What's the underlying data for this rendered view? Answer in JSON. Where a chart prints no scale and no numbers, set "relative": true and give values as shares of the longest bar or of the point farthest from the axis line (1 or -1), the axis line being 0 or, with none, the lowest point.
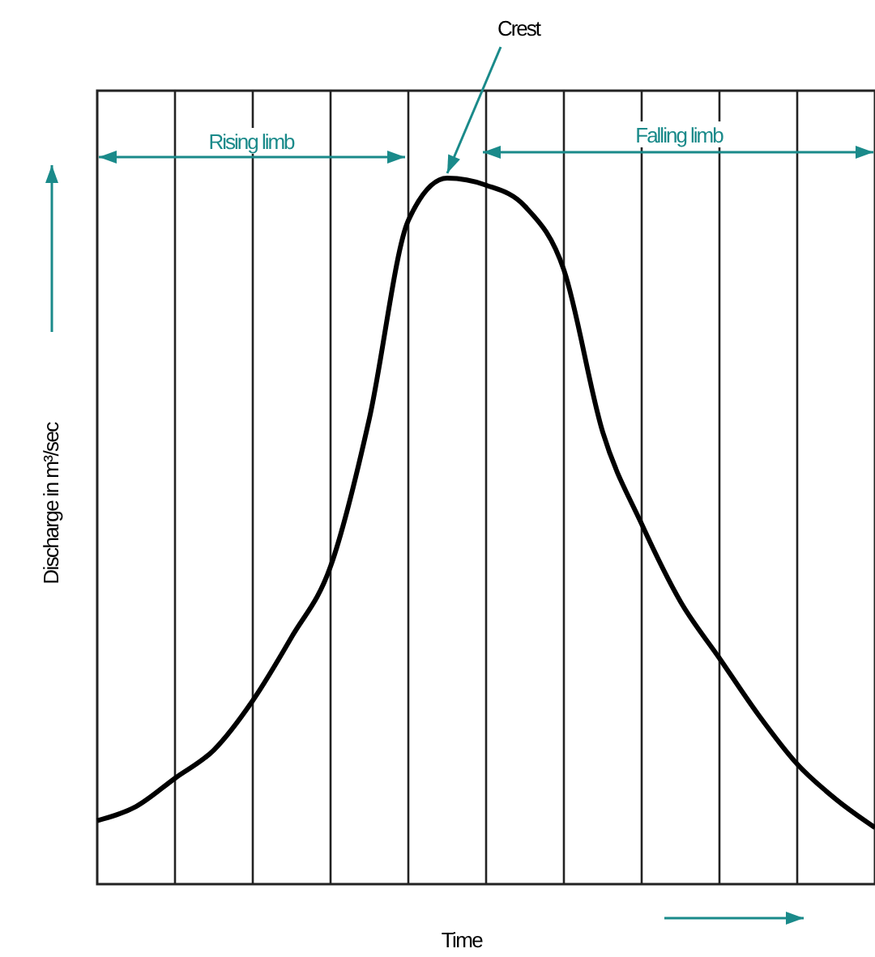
{
  "chart_data": {
    "type": "line",
    "relative": true,
    "xlabel": "Time",
    "ylabel": "Discharge in m³/sec",
    "grid": "x",
    "categories": [
      null,
      null,
      null,
      null,
      null,
      null,
      null,
      null,
      null,
      null,
      null,
      null,
      null,
      null,
      null,
      null,
      null,
      null,
      null,
      null,
      null
    ],
    "series": [
      {
        "color": "#000000",
        "values": [
          0.09,
          0.11,
          0.15,
          0.19,
          0.26,
          0.35,
          0.45,
          0.66,
          0.94,
          1.0,
          0.99,
          0.96,
          0.87,
          0.64,
          0.51,
          0.4,
          0.32,
          0.24,
          0.17,
          0.12,
          0.08
        ]
      }
    ],
    "annotations": [
      "Crest",
      "Rising limb",
      "Falling limb"
    ]
  }
}
